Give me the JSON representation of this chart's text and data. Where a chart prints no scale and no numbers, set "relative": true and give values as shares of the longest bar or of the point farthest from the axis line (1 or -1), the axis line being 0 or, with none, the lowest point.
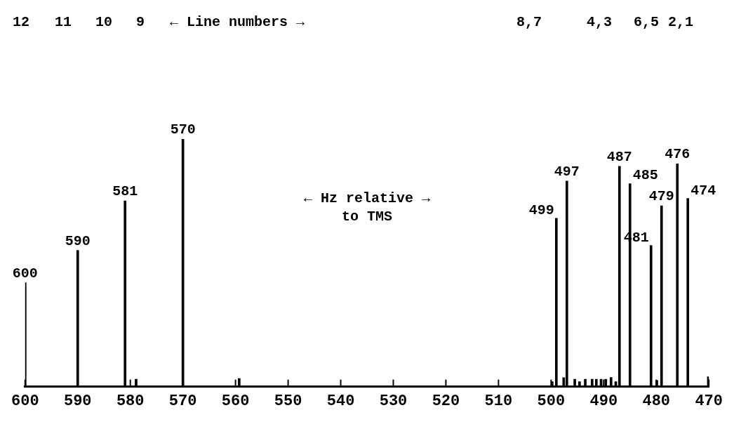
{
  "chart_data": {
    "type": "bar",
    "relative": true,
    "xlabel": "← Hz relative →\nto TMS",
    "color": "#000000",
    "x": [
      600,
      590,
      581,
      578.9,
      570,
      559.3,
      499.8,
      499,
      497.6,
      497,
      495.5,
      494.6,
      493.5,
      492.2,
      491.4,
      490.5,
      489.6,
      488.6,
      487.7,
      487,
      485,
      481,
      479.9,
      479,
      476,
      474,
      470.1
    ],
    "values": [
      0.42,
      0.55,
      0.75,
      0.03,
      1,
      0.033,
      0.02,
      0.68,
      0.036,
      0.83,
      0.03,
      0.02,
      0.03,
      0.03,
      0.03,
      0.03,
      0.03,
      0.037,
      0.02,
      0.89,
      0.82,
      0.57,
      0.025,
      0.73,
      0.9,
      0.76,
      0.04
    ],
    "xlim": [
      600,
      470
    ],
    "xticks": [
      600,
      590,
      580,
      570,
      560,
      550,
      540,
      530,
      520,
      510,
      500,
      490,
      480,
      470
    ],
    "grid": false,
    "legend": false,
    "annotations": [
      "12",
      "11",
      "10",
      "9",
      "← Line numbers →",
      "8,7",
      "4,3",
      "6,5",
      "2,1",
      {
        "text": "600",
        "x": 600,
        "y": 0.42
      },
      {
        "text": "590",
        "x": 590,
        "y": 0.55
      },
      {
        "text": "581",
        "x": 581,
        "y": 0.75
      },
      {
        "text": "570",
        "x": 570,
        "y": 1
      },
      {
        "text": "499",
        "x": 499,
        "y": 0.68
      },
      {
        "text": "497",
        "x": 497,
        "y": 0.83
      },
      {
        "text": "487",
        "x": 487,
        "y": 0.89
      },
      {
        "text": "485",
        "x": 485,
        "y": 0.82
      },
      {
        "text": "481",
        "x": 481,
        "y": 0.57
      },
      {
        "text": "479",
        "x": 479,
        "y": 0.73
      },
      {
        "text": "476",
        "x": 476,
        "y": 0.9
      },
      {
        "text": "474",
        "x": 474,
        "y": 0.76
      }
    ]
  }
}
